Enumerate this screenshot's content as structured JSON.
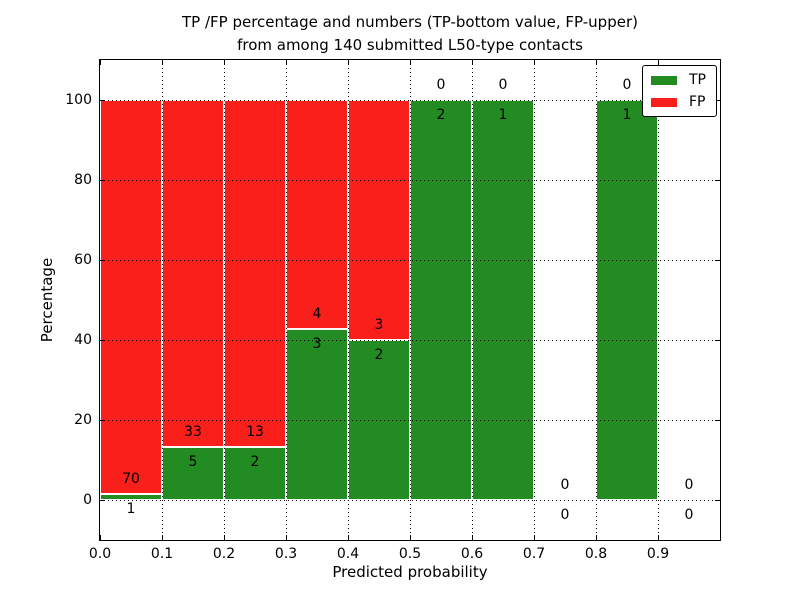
{
  "title": {
    "line1": "TP /FP percentage and numbers (TP-bottom value, FP-upper)",
    "line2": "from among 140 submitted L50-type contacts"
  },
  "axes": {
    "xlabel": "Predicted probability",
    "ylabel": "Percentage",
    "xtick_labels": [
      "0.0",
      "0.1",
      "0.2",
      "0.3",
      "0.4",
      "0.5",
      "0.6",
      "0.7",
      "0.8",
      "0.9"
    ],
    "xtick_values": [
      0.0,
      0.1,
      0.2,
      0.3,
      0.4,
      0.5,
      0.6,
      0.7,
      0.8,
      0.9
    ],
    "ytick_labels": [
      "0",
      "20",
      "40",
      "60",
      "80",
      "100"
    ],
    "ytick_values": [
      0,
      20,
      40,
      60,
      80,
      100
    ],
    "xlim": [
      0.0,
      1.0
    ],
    "ylim": [
      -10,
      110
    ],
    "grid": "dotted, drawn above bars"
  },
  "legend": {
    "position": "upper right",
    "items": [
      {
        "label": "TP",
        "color": "#228b22"
      },
      {
        "label": "FP",
        "color": "#f91f1a"
      }
    ]
  },
  "chart_data": {
    "type": "bar",
    "stacked": true,
    "orientation": "vertical",
    "bin_width": 0.1,
    "total_contacts": 140,
    "colors": {
      "tp": "#228b22",
      "fp": "#f91f1a",
      "bar_edge": "#ffffff",
      "text": "#000000"
    },
    "note": "Each bin stacks TP% (green, bottom) and FP% (red, top) to 100%; labels show raw counts: FP count above the TP/FP boundary, TP count below it",
    "bins": [
      {
        "x0": 0.0,
        "x1": 0.1,
        "tp": 1,
        "fp": 70,
        "tp_pct": 1.41,
        "fp_pct": 98.59
      },
      {
        "x0": 0.1,
        "x1": 0.2,
        "tp": 5,
        "fp": 33,
        "tp_pct": 13.16,
        "fp_pct": 86.84
      },
      {
        "x0": 0.2,
        "x1": 0.3,
        "tp": 2,
        "fp": 13,
        "tp_pct": 13.33,
        "fp_pct": 86.67
      },
      {
        "x0": 0.3,
        "x1": 0.4,
        "tp": 3,
        "fp": 4,
        "tp_pct": 42.86,
        "fp_pct": 57.14
      },
      {
        "x0": 0.4,
        "x1": 0.5,
        "tp": 2,
        "fp": 3,
        "tp_pct": 40.0,
        "fp_pct": 60.0
      },
      {
        "x0": 0.5,
        "x1": 0.6,
        "tp": 2,
        "fp": 0,
        "tp_pct": 100.0,
        "fp_pct": 0.0
      },
      {
        "x0": 0.6,
        "x1": 0.7,
        "tp": 1,
        "fp": 0,
        "tp_pct": 100.0,
        "fp_pct": 0.0
      },
      {
        "x0": 0.7,
        "x1": 0.8,
        "tp": 0,
        "fp": 0,
        "tp_pct": 0.0,
        "fp_pct": 0.0
      },
      {
        "x0": 0.8,
        "x1": 0.9,
        "tp": 1,
        "fp": 0,
        "tp_pct": 100.0,
        "fp_pct": 0.0
      },
      {
        "x0": 0.9,
        "x1": 1.0,
        "tp": 0,
        "fp": 0,
        "tp_pct": 0.0,
        "fp_pct": 0.0
      }
    ]
  }
}
